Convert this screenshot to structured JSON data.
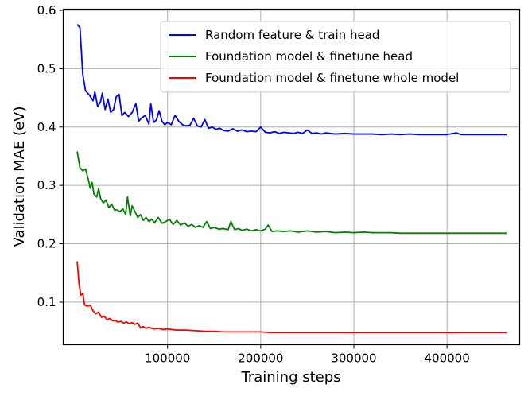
{
  "chart_data": {
    "type": "line",
    "title": "",
    "xlabel": "Training steps",
    "ylabel": "Validation MAE (eV)",
    "xlim": [
      -12000,
      478000
    ],
    "ylim": [
      0.027,
      0.602
    ],
    "xticks": [
      100000,
      200000,
      300000,
      400000
    ],
    "xtick_labels": [
      "100000",
      "200000",
      "300000",
      "400000"
    ],
    "yticks": [
      0.1,
      0.2,
      0.3,
      0.4,
      0.5,
      0.6
    ],
    "ytick_labels": [
      "0.1",
      "0.2",
      "0.3",
      "0.4",
      "0.5",
      "0.6"
    ],
    "grid": true,
    "legend_position": "top-right",
    "series": [
      {
        "name": "Random feature & train head",
        "color": "#0000ff",
        "points": [
          [
            3000,
            0.576
          ],
          [
            6000,
            0.57
          ],
          [
            9000,
            0.49
          ],
          [
            12000,
            0.462
          ],
          [
            16000,
            0.455
          ],
          [
            20000,
            0.445
          ],
          [
            22000,
            0.46
          ],
          [
            25000,
            0.435
          ],
          [
            28000,
            0.443
          ],
          [
            30000,
            0.458
          ],
          [
            33000,
            0.43
          ],
          [
            36000,
            0.448
          ],
          [
            39000,
            0.425
          ],
          [
            42000,
            0.43
          ],
          [
            45000,
            0.452
          ],
          [
            48000,
            0.456
          ],
          [
            51000,
            0.42
          ],
          [
            54000,
            0.425
          ],
          [
            58000,
            0.418
          ],
          [
            62000,
            0.425
          ],
          [
            66000,
            0.44
          ],
          [
            69000,
            0.41
          ],
          [
            72000,
            0.415
          ],
          [
            76000,
            0.42
          ],
          [
            80000,
            0.405
          ],
          [
            82000,
            0.44
          ],
          [
            85000,
            0.408
          ],
          [
            88000,
            0.412
          ],
          [
            91000,
            0.428
          ],
          [
            94000,
            0.41
          ],
          [
            97000,
            0.404
          ],
          [
            100000,
            0.408
          ],
          [
            104000,
            0.404
          ],
          [
            108000,
            0.42
          ],
          [
            112000,
            0.41
          ],
          [
            116000,
            0.404
          ],
          [
            120000,
            0.402
          ],
          [
            124000,
            0.403
          ],
          [
            128000,
            0.415
          ],
          [
            132000,
            0.402
          ],
          [
            136000,
            0.4
          ],
          [
            140000,
            0.413
          ],
          [
            144000,
            0.398
          ],
          [
            148000,
            0.4
          ],
          [
            152000,
            0.396
          ],
          [
            156000,
            0.398
          ],
          [
            160000,
            0.394
          ],
          [
            165000,
            0.393
          ],
          [
            170000,
            0.397
          ],
          [
            175000,
            0.393
          ],
          [
            180000,
            0.395
          ],
          [
            185000,
            0.392
          ],
          [
            190000,
            0.393
          ],
          [
            195000,
            0.392
          ],
          [
            200000,
            0.4
          ],
          [
            205000,
            0.391
          ],
          [
            210000,
            0.39
          ],
          [
            215000,
            0.392
          ],
          [
            220000,
            0.389
          ],
          [
            225000,
            0.391
          ],
          [
            230000,
            0.39
          ],
          [
            235000,
            0.389
          ],
          [
            240000,
            0.391
          ],
          [
            245000,
            0.389
          ],
          [
            250000,
            0.395
          ],
          [
            255000,
            0.389
          ],
          [
            260000,
            0.39
          ],
          [
            265000,
            0.388
          ],
          [
            270000,
            0.39
          ],
          [
            280000,
            0.388
          ],
          [
            290000,
            0.389
          ],
          [
            300000,
            0.388
          ],
          [
            310000,
            0.388
          ],
          [
            320000,
            0.388
          ],
          [
            330000,
            0.387
          ],
          [
            340000,
            0.388
          ],
          [
            350000,
            0.387
          ],
          [
            360000,
            0.388
          ],
          [
            370000,
            0.387
          ],
          [
            380000,
            0.387
          ],
          [
            390000,
            0.387
          ],
          [
            400000,
            0.387
          ],
          [
            410000,
            0.39
          ],
          [
            415000,
            0.387
          ],
          [
            420000,
            0.387
          ],
          [
            430000,
            0.387
          ],
          [
            440000,
            0.387
          ],
          [
            450000,
            0.387
          ],
          [
            464000,
            0.387
          ]
        ]
      },
      {
        "name": "Foundation model & finetune head",
        "color": "#008000",
        "points": [
          [
            3000,
            0.358
          ],
          [
            6000,
            0.33
          ],
          [
            9000,
            0.325
          ],
          [
            12000,
            0.328
          ],
          [
            15000,
            0.31
          ],
          [
            17000,
            0.295
          ],
          [
            19000,
            0.305
          ],
          [
            21000,
            0.285
          ],
          [
            24000,
            0.28
          ],
          [
            26000,
            0.295
          ],
          [
            28000,
            0.278
          ],
          [
            31000,
            0.27
          ],
          [
            34000,
            0.275
          ],
          [
            37000,
            0.262
          ],
          [
            40000,
            0.268
          ],
          [
            43000,
            0.258
          ],
          [
            46000,
            0.258
          ],
          [
            49000,
            0.255
          ],
          [
            52000,
            0.26
          ],
          [
            55000,
            0.25
          ],
          [
            57000,
            0.28
          ],
          [
            60000,
            0.248
          ],
          [
            62000,
            0.265
          ],
          [
            65000,
            0.255
          ],
          [
            68000,
            0.245
          ],
          [
            71000,
            0.25
          ],
          [
            74000,
            0.24
          ],
          [
            77000,
            0.245
          ],
          [
            80000,
            0.238
          ],
          [
            83000,
            0.242
          ],
          [
            86000,
            0.236
          ],
          [
            90000,
            0.245
          ],
          [
            94000,
            0.235
          ],
          [
            98000,
            0.238
          ],
          [
            102000,
            0.242
          ],
          [
            106000,
            0.233
          ],
          [
            110000,
            0.24
          ],
          [
            114000,
            0.232
          ],
          [
            118000,
            0.236
          ],
          [
            122000,
            0.23
          ],
          [
            126000,
            0.233
          ],
          [
            130000,
            0.228
          ],
          [
            134000,
            0.231
          ],
          [
            138000,
            0.228
          ],
          [
            142000,
            0.238
          ],
          [
            146000,
            0.226
          ],
          [
            150000,
            0.228
          ],
          [
            155000,
            0.225
          ],
          [
            160000,
            0.226
          ],
          [
            165000,
            0.224
          ],
          [
            168000,
            0.238
          ],
          [
            172000,
            0.224
          ],
          [
            176000,
            0.226
          ],
          [
            180000,
            0.223
          ],
          [
            185000,
            0.225
          ],
          [
            190000,
            0.222
          ],
          [
            195000,
            0.224
          ],
          [
            200000,
            0.222
          ],
          [
            205000,
            0.225
          ],
          [
            208000,
            0.232
          ],
          [
            212000,
            0.221
          ],
          [
            218000,
            0.222
          ],
          [
            225000,
            0.221
          ],
          [
            232000,
            0.222
          ],
          [
            240000,
            0.22
          ],
          [
            250000,
            0.222
          ],
          [
            260000,
            0.22
          ],
          [
            270000,
            0.221
          ],
          [
            280000,
            0.219
          ],
          [
            290000,
            0.22
          ],
          [
            300000,
            0.219
          ],
          [
            310000,
            0.22
          ],
          [
            320000,
            0.219
          ],
          [
            330000,
            0.219
          ],
          [
            340000,
            0.219
          ],
          [
            350000,
            0.218
          ],
          [
            360000,
            0.218
          ],
          [
            370000,
            0.218
          ],
          [
            380000,
            0.218
          ],
          [
            390000,
            0.218
          ],
          [
            400000,
            0.218
          ],
          [
            410000,
            0.218
          ],
          [
            420000,
            0.218
          ],
          [
            430000,
            0.218
          ],
          [
            440000,
            0.218
          ],
          [
            450000,
            0.218
          ],
          [
            464000,
            0.218
          ]
        ]
      },
      {
        "name": "Foundation model & finetune whole model",
        "color": "#ff0000",
        "points": [
          [
            3000,
            0.17
          ],
          [
            5000,
            0.13
          ],
          [
            7000,
            0.112
          ],
          [
            9000,
            0.115
          ],
          [
            11000,
            0.095
          ],
          [
            14000,
            0.093
          ],
          [
            17000,
            0.095
          ],
          [
            20000,
            0.085
          ],
          [
            23000,
            0.08
          ],
          [
            26000,
            0.083
          ],
          [
            29000,
            0.074
          ],
          [
            32000,
            0.076
          ],
          [
            35000,
            0.07
          ],
          [
            38000,
            0.072
          ],
          [
            41000,
            0.068
          ],
          [
            44000,
            0.068
          ],
          [
            47000,
            0.066
          ],
          [
            50000,
            0.067
          ],
          [
            53000,
            0.064
          ],
          [
            56000,
            0.066
          ],
          [
            59000,
            0.063
          ],
          [
            62000,
            0.065
          ],
          [
            65000,
            0.062
          ],
          [
            68000,
            0.064
          ],
          [
            71000,
            0.056
          ],
          [
            74000,
            0.058
          ],
          [
            77000,
            0.055
          ],
          [
            80000,
            0.057
          ],
          [
            85000,
            0.054
          ],
          [
            90000,
            0.055
          ],
          [
            95000,
            0.053
          ],
          [
            100000,
            0.054
          ],
          [
            110000,
            0.052
          ],
          [
            120000,
            0.052
          ],
          [
            130000,
            0.051
          ],
          [
            140000,
            0.05
          ],
          [
            150000,
            0.05
          ],
          [
            160000,
            0.049
          ],
          [
            170000,
            0.049
          ],
          [
            180000,
            0.049
          ],
          [
            190000,
            0.049
          ],
          [
            200000,
            0.049
          ],
          [
            210000,
            0.048
          ],
          [
            220000,
            0.048
          ],
          [
            240000,
            0.048
          ],
          [
            260000,
            0.048
          ],
          [
            280000,
            0.048
          ],
          [
            300000,
            0.048
          ],
          [
            320000,
            0.048
          ],
          [
            340000,
            0.048
          ],
          [
            360000,
            0.048
          ],
          [
            380000,
            0.048
          ],
          [
            400000,
            0.048
          ],
          [
            420000,
            0.048
          ],
          [
            440000,
            0.048
          ],
          [
            464000,
            0.048
          ]
        ]
      }
    ]
  }
}
